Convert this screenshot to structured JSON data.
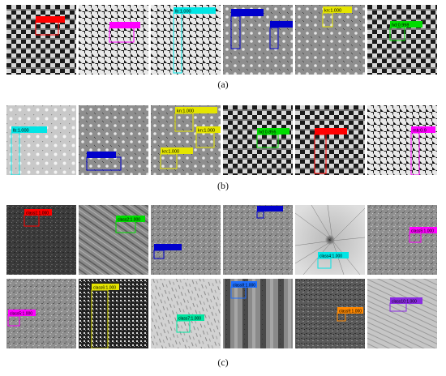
{
  "figure": {
    "captions": {
      "a": "(a)",
      "b": "(b)",
      "c": "(c)"
    }
  },
  "rows": [
    {
      "id": "a",
      "tiles": [
        {
          "pattern": "checker",
          "boxes": [
            {
              "label": "",
              "color": "#ff0000"
            }
          ]
        },
        {
          "pattern": "houndstooth",
          "boxes": [
            {
              "label": "",
              "color": "#ff00ff"
            }
          ]
        },
        {
          "pattern": "houndstooth",
          "boxes": [
            {
              "label": "lb:1.000",
              "color": "#00e5e5"
            }
          ]
        },
        {
          "pattern": "dots",
          "boxes": [
            {
              "label": "",
              "color": "#0000cc"
            },
            {
              "label": "",
              "color": "#0000cc"
            }
          ]
        },
        {
          "pattern": "dots",
          "boxes": [
            {
              "label": "kn:1.000",
              "color": "#e5e500"
            }
          ]
        },
        {
          "pattern": "checker",
          "boxes": [
            {
              "label": "hd:0.998",
              "color": "#00dd00"
            }
          ]
        }
      ]
    },
    {
      "id": "b",
      "tiles": [
        {
          "pattern": "lightdots",
          "boxes": [
            {
              "label": "lb:1.000",
              "color": "#00e5e5"
            }
          ]
        },
        {
          "pattern": "dots",
          "boxes": [
            {
              "label": "",
              "color": "#0000cc"
            }
          ]
        },
        {
          "pattern": "dots",
          "boxes": [
            {
              "label": "kn:1.000",
              "color": "#e5e500"
            },
            {
              "label": "kn:1.000",
              "color": "#e5e500"
            },
            {
              "label": "kn:1.000",
              "color": "#e5e500"
            }
          ]
        },
        {
          "pattern": "checker",
          "boxes": [
            {
              "label": "hd:0.856",
              "color": "#00dd00"
            }
          ]
        },
        {
          "pattern": "checker",
          "boxes": [
            {
              "label": "",
              "color": "#ff0000"
            }
          ]
        },
        {
          "pattern": "houndstooth",
          "boxes": [
            {
              "label": "mb:0.9",
              "color": "#ff00ff"
            }
          ]
        }
      ]
    },
    {
      "id": "c1",
      "tiles": [
        {
          "pattern": "darknoise",
          "boxes": [
            {
              "label": "class1:1.000",
              "color": "#ff0000"
            }
          ]
        },
        {
          "pattern": "streaks",
          "boxes": [
            {
              "label": "class2:1.000",
              "color": "#00dd00"
            }
          ]
        },
        {
          "pattern": "noise",
          "boxes": [
            {
              "label": "",
              "color": "#0000cc"
            }
          ]
        },
        {
          "pattern": "noise",
          "boxes": [
            {
              "label": "",
              "color": "#0000cc"
            }
          ]
        },
        {
          "pattern": "radial",
          "boxes": [
            {
              "label": "class4:1.000",
              "color": "#00e5e5"
            }
          ]
        },
        {
          "pattern": "noise",
          "boxes": [
            {
              "label": "class5:1.000",
              "color": "#ff00ff"
            }
          ]
        }
      ]
    },
    {
      "id": "c2",
      "tiles": [
        {
          "pattern": "noise",
          "boxes": [
            {
              "label": "class5:1.000",
              "color": "#ff00ff"
            }
          ]
        },
        {
          "pattern": "speckle",
          "boxes": [
            {
              "label": "class6:1.000",
              "color": "#e5e500"
            }
          ]
        },
        {
          "pattern": "lightstreaks",
          "boxes": [
            {
              "label": "class7:1.000",
              "color": "#00e5a0"
            }
          ]
        },
        {
          "pattern": "darkstripes",
          "boxes": [
            {
              "label": "class8:1.000",
              "color": "#1e6fff"
            }
          ]
        },
        {
          "pattern": "darknoise2",
          "boxes": [
            {
              "label": "class9:1.000",
              "color": "#ff8800"
            }
          ]
        },
        {
          "pattern": "lightstreaks2",
          "boxes": [
            {
              "label": "class10:1.000",
              "color": "#8a2be2"
            }
          ]
        }
      ]
    }
  ]
}
